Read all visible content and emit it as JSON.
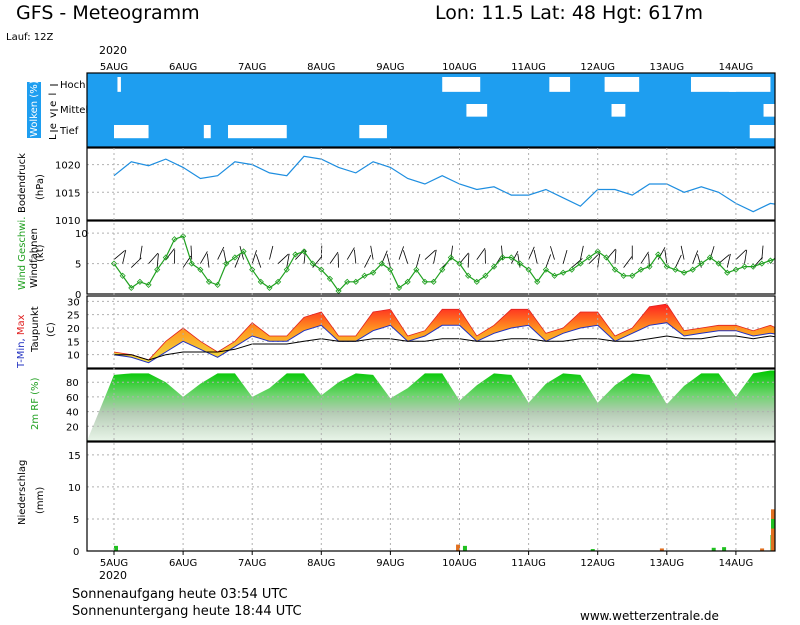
{
  "header": {
    "title": "GFS - Meteogramm",
    "coords": "Lon: 11.5 Lat: 48 Hgt: 617m",
    "run": "Lauf: 12Z",
    "year": "2020"
  },
  "footer": {
    "sunrise": "Sonnenaufgang heute 03:54 UTC",
    "sunset": "Sonnenuntergang heute 18:44 UTC",
    "source": "www.wetterzentrale.de"
  },
  "chart_data": [
    {
      "type": "area",
      "name": "clouds",
      "ylabel": [
        "Wolken (%)",
        "L e v e l"
      ],
      "levels": [
        "Hoch",
        "Mittel",
        "Tief"
      ],
      "day_labels": [
        "5AUG",
        "6AUG",
        "7AUG",
        "8AUG",
        "9AUG",
        "10AUG",
        "11AUG",
        "12AUG",
        "13AUG",
        "14AUG"
      ],
      "x_unit": "day_index",
      "clear_patches": [
        {
          "level": "Hoch",
          "from": 0.05,
          "to": 0.1
        },
        {
          "level": "Hoch",
          "from": 4.75,
          "to": 5.3
        },
        {
          "level": "Hoch",
          "from": 6.3,
          "to": 6.6
        },
        {
          "level": "Hoch",
          "from": 7.1,
          "to": 7.6
        },
        {
          "level": "Hoch",
          "from": 8.35,
          "to": 9.0
        },
        {
          "level": "Hoch",
          "from": 8.9,
          "to": 9.5
        },
        {
          "level": "Mittel",
          "from": 5.1,
          "to": 5.4
        },
        {
          "level": "Mittel",
          "from": 7.2,
          "to": 7.4
        },
        {
          "level": "Mittel",
          "from": 9.4,
          "to": 10.0
        },
        {
          "level": "Tief",
          "from": 0.0,
          "to": 0.5
        },
        {
          "level": "Tief",
          "from": 1.65,
          "to": 2.5
        },
        {
          "level": "Tief",
          "from": 1.3,
          "to": 1.4
        },
        {
          "level": "Tief",
          "from": 3.55,
          "to": 3.95
        },
        {
          "level": "Tief",
          "from": 9.2,
          "to": 10.0
        }
      ]
    },
    {
      "type": "line",
      "name": "pressure",
      "ylabel": [
        "Bodendruck",
        "(hPa)"
      ],
      "yticks": [
        1010,
        1015,
        1020
      ],
      "ylim": [
        1010,
        1023
      ],
      "x": [
        0,
        0.25,
        0.5,
        0.75,
        1,
        1.25,
        1.5,
        1.75,
        2,
        2.25,
        2.5,
        2.75,
        3,
        3.25,
        3.5,
        3.75,
        4,
        4.25,
        4.5,
        4.75,
        5,
        5.25,
        5.5,
        5.75,
        6,
        6.25,
        6.5,
        6.75,
        7,
        7.25,
        7.5,
        7.75,
        8,
        8.25,
        8.5,
        8.75,
        9,
        9.25,
        9.5,
        9.75,
        10
      ],
      "values": [
        1018,
        1020.5,
        1019.8,
        1021,
        1019.5,
        1017.5,
        1018,
        1020.5,
        1020,
        1018.5,
        1018,
        1021.5,
        1021,
        1019.5,
        1018.5,
        1020.5,
        1019.5,
        1017.5,
        1016.5,
        1018,
        1016.5,
        1015.5,
        1016,
        1014.5,
        1014.5,
        1015.5,
        1014,
        1012.5,
        1015.5,
        1015.5,
        1014.5,
        1016.5,
        1016.5,
        1015,
        1016,
        1015,
        1013,
        1011.5,
        1013,
        1012.5,
        1013
      ]
    },
    {
      "type": "line",
      "name": "wind",
      "ylabel": [
        "Wind Geschwi.",
        "(kt)",
        "Windfahnen"
      ],
      "yticks": [
        0,
        5,
        10
      ],
      "ylim": [
        0,
        12
      ],
      "x": [
        0,
        0.125,
        0.25,
        0.375,
        0.5,
        0.625,
        0.75,
        0.875,
        1,
        1.125,
        1.25,
        1.375,
        1.5,
        1.625,
        1.75,
        1.875,
        2,
        2.125,
        2.25,
        2.375,
        2.5,
        2.625,
        2.75,
        2.875,
        3,
        3.125,
        3.25,
        3.375,
        3.5,
        3.625,
        3.75,
        3.875,
        4,
        4.125,
        4.25,
        4.375,
        4.5,
        4.625,
        4.75,
        4.875,
        5,
        5.125,
        5.25,
        5.375,
        5.5,
        5.625,
        5.75,
        5.875,
        6,
        6.125,
        6.25,
        6.375,
        6.5,
        6.625,
        6.75,
        6.875,
        7,
        7.125,
        7.25,
        7.375,
        7.5,
        7.625,
        7.75,
        7.875,
        8,
        8.125,
        8.25,
        8.375,
        8.5,
        8.625,
        8.75,
        8.875,
        9,
        9.125,
        9.25,
        9.375,
        9.5,
        9.625,
        9.75,
        9.875,
        10
      ],
      "values": [
        5,
        3,
        1,
        2,
        1.5,
        4,
        6,
        9,
        9.5,
        5,
        4,
        2,
        1.5,
        5,
        6,
        7,
        4,
        2,
        1,
        2,
        4,
        6.5,
        7,
        5,
        4,
        2.5,
        0.5,
        2,
        2,
        3,
        3.5,
        5,
        4,
        1,
        2,
        4,
        2,
        2,
        4,
        6,
        5,
        3,
        2,
        3,
        4.5,
        6,
        6,
        5,
        4,
        2,
        4,
        3,
        3.5,
        4,
        5,
        6,
        7,
        6,
        4,
        3,
        3,
        4,
        4.5,
        6.5,
        4.5,
        4,
        3.5,
        4,
        5,
        6,
        5,
        3.5,
        4,
        4.5,
        4.5,
        5,
        5.5,
        6,
        6.5,
        6,
        4.5
      ]
    },
    {
      "type": "area",
      "name": "temperature",
      "ylabel": [
        "T-Min, Max",
        "Taupunkt",
        "(C)"
      ],
      "yticks": [
        10,
        15,
        20,
        25,
        30
      ],
      "ylim": [
        5,
        32
      ],
      "x": [
        0,
        0.25,
        0.5,
        0.75,
        1,
        1.25,
        1.5,
        1.75,
        2,
        2.25,
        2.5,
        2.75,
        3,
        3.25,
        3.5,
        3.75,
        4,
        4.25,
        4.5,
        4.75,
        5,
        5.25,
        5.5,
        5.75,
        6,
        6.25,
        6.5,
        6.75,
        7,
        7.25,
        7.5,
        7.75,
        8,
        8.25,
        8.5,
        8.75,
        9,
        9.25,
        9.5,
        9.75,
        10
      ],
      "t_max": [
        11,
        10,
        8,
        15,
        20,
        15,
        11,
        15,
        22,
        17,
        17,
        24,
        26,
        17,
        17,
        26,
        27,
        17,
        19,
        27,
        27,
        17,
        21,
        27,
        27,
        18,
        20,
        26,
        26,
        17,
        20,
        28,
        29,
        19,
        20,
        21,
        21,
        19,
        21,
        18,
        17
      ],
      "t_min": [
        10,
        9,
        7,
        11,
        15,
        12,
        9,
        13,
        17,
        15,
        15,
        19,
        21,
        15,
        15,
        19,
        21,
        15,
        17,
        21,
        21,
        15,
        18,
        20,
        21,
        15,
        18,
        20,
        21,
        15,
        18,
        21,
        22,
        17,
        18,
        19,
        19,
        17,
        18,
        17,
        16
      ],
      "dewpoint": [
        10,
        10,
        8,
        10,
        11,
        11,
        11,
        12,
        14,
        14,
        14,
        15,
        16,
        15,
        15,
        16,
        16,
        15,
        15,
        16,
        16,
        15,
        15,
        16,
        16,
        15,
        15,
        16,
        16,
        15,
        15,
        16,
        17,
        16,
        16,
        17,
        17,
        16,
        17,
        16,
        16
      ]
    },
    {
      "type": "area",
      "name": "humidity",
      "ylabel": [
        "2m RF (%)"
      ],
      "yticks": [
        20,
        40,
        60,
        80
      ],
      "ylim": [
        0,
        98
      ],
      "x": [
        0,
        0.25,
        0.5,
        0.75,
        1,
        1.25,
        1.5,
        1.75,
        2,
        2.25,
        2.5,
        2.75,
        3,
        3.25,
        3.5,
        3.75,
        4,
        4.25,
        4.5,
        4.75,
        5,
        5.25,
        5.5,
        5.75,
        6,
        6.25,
        6.5,
        6.75,
        7,
        7.25,
        7.5,
        7.75,
        8,
        8.25,
        8.5,
        8.75,
        9,
        9.25,
        9.5,
        9.75,
        10
      ],
      "values": [
        90,
        92,
        92,
        80,
        60,
        78,
        92,
        92,
        60,
        72,
        92,
        92,
        62,
        80,
        92,
        90,
        58,
        72,
        92,
        92,
        55,
        76,
        92,
        90,
        52,
        78,
        92,
        90,
        52,
        76,
        92,
        90,
        50,
        75,
        92,
        92,
        60,
        92,
        96,
        96,
        96
      ]
    },
    {
      "type": "bar",
      "name": "precipitation",
      "ylabel": [
        "Niederschlag",
        "(mm)"
      ],
      "yticks": [
        0,
        5,
        10,
        15
      ],
      "ylim": [
        0,
        17
      ],
      "x": [
        0.0,
        4.95,
        5.05,
        6.9,
        7.9,
        8.65,
        8.8,
        9.35,
        9.5,
        9.6,
        9.75,
        9.85,
        9.95,
        10.0
      ],
      "values": [
        0.8,
        1.0,
        0.8,
        0.3,
        0.4,
        0.5,
        0.6,
        0.4,
        2.5,
        4.5,
        6.5,
        3.5,
        5.0,
        3.5
      ]
    }
  ]
}
